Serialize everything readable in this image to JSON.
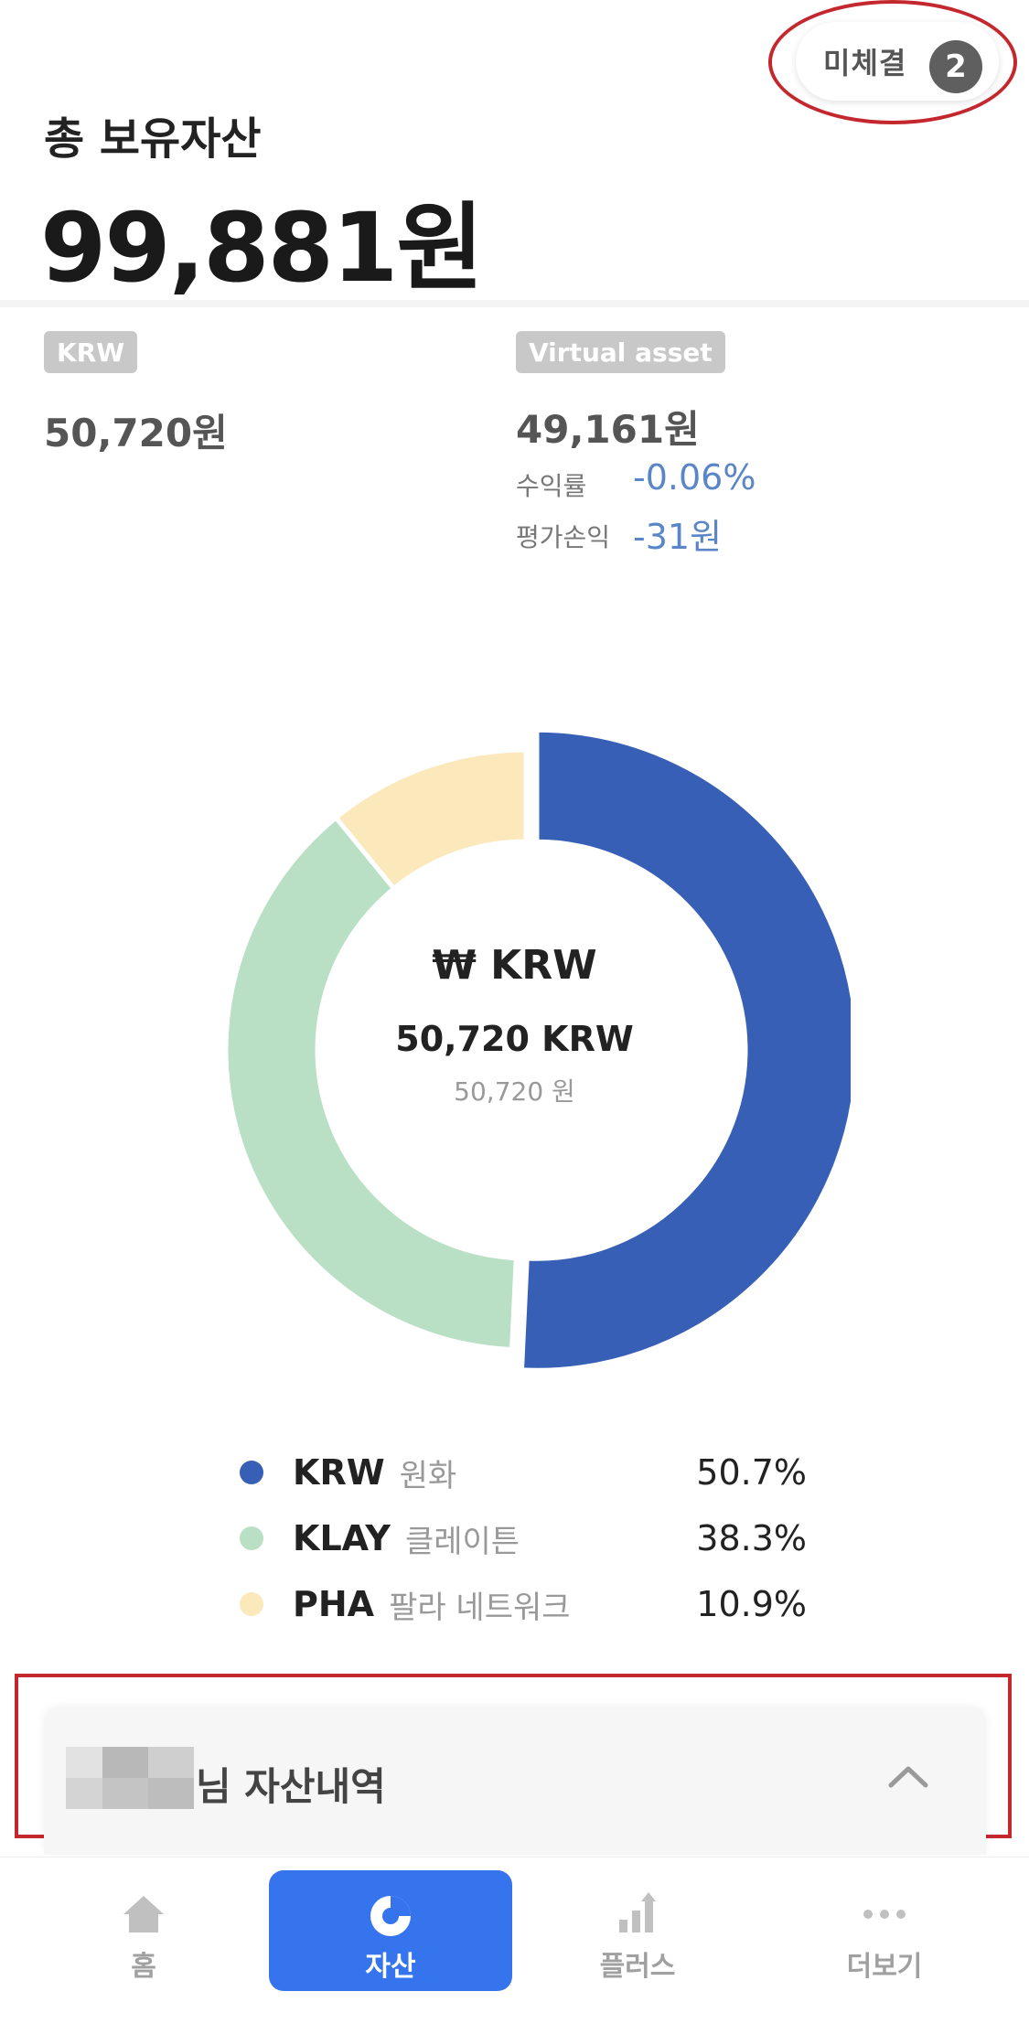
{
  "header": {
    "pending_label": "미체결",
    "pending_count": "2",
    "total_label": "총 보유자산",
    "total_amount": "99,881원"
  },
  "summary": {
    "krw_tag": "KRW",
    "krw_amount": "50,720원",
    "virtual_tag": "Virtual asset",
    "virtual_amount": "49,161원",
    "return_label": "수익률",
    "return_value": "-0.06%",
    "pnl_label": "평가손익",
    "pnl_value": "-31원"
  },
  "chart_data": {
    "type": "pie",
    "categories": [
      "KRW",
      "KLAY",
      "PHA"
    ],
    "values": [
      50.7,
      38.3,
      10.9
    ],
    "colors": [
      "#365fb5",
      "#b9dfc5",
      "#fbe8bb"
    ],
    "center": {
      "title": "₩ KRW",
      "amount": "50,720 KRW",
      "sub": "50,720 원"
    }
  },
  "legend": [
    {
      "code": "KRW",
      "name": "원화",
      "pct": "50.7%",
      "color": "#365fb5"
    },
    {
      "code": "KLAY",
      "name": "클레이튼",
      "pct": "38.3%",
      "color": "#b9dfc5"
    },
    {
      "code": "PHA",
      "name": "팔라 네트워크",
      "pct": "10.9%",
      "color": "#fbe8bb"
    }
  ],
  "history": {
    "title": "님 자산내역"
  },
  "nav": {
    "items": [
      {
        "label": "홈",
        "icon": "home-icon"
      },
      {
        "label": "자산",
        "icon": "pie-chart-icon"
      },
      {
        "label": "플러스",
        "icon": "bar-chart-icon"
      },
      {
        "label": "더보기",
        "icon": "more-dots-icon"
      }
    ],
    "accent": "#3674ee"
  }
}
